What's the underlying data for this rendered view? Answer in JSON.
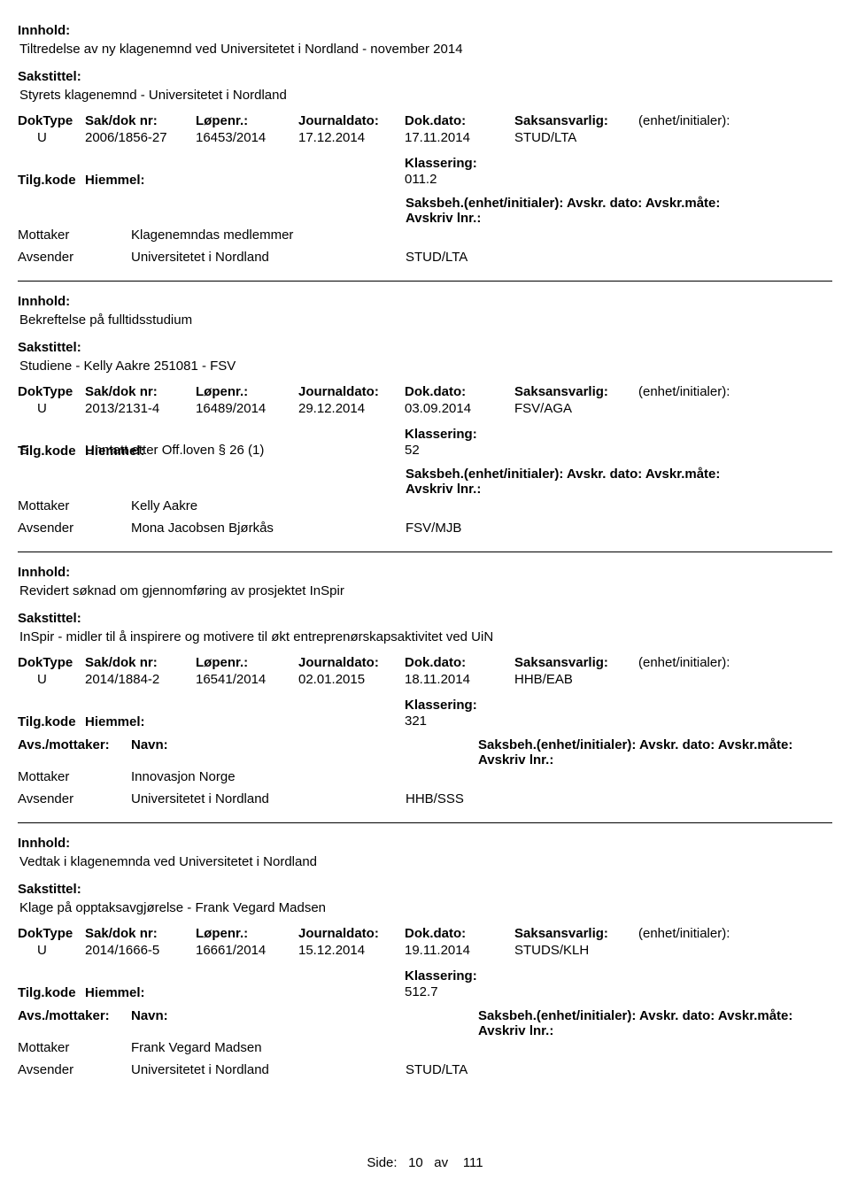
{
  "labels": {
    "innhold": "Innhold:",
    "sakstittel": "Sakstittel:",
    "doktype": "DokType",
    "sakdoknr": "Sak/dok nr:",
    "lopenr": "Løpenr.:",
    "journaldato": "Journaldato:",
    "dokdato": "Dok.dato:",
    "saksansvarlig": "Saksansvarlig:",
    "enhet": "(enhet/initialer):",
    "tilgkode": "Tilg.kode",
    "hjemmel": "Hiemmel:",
    "klassering": "Klassering:",
    "avsmottaker": "Avs./mottaker:",
    "navn": "Navn:",
    "saksbeh": "Saksbeh.(enhet/initialer): Avskr. dato:  Avskr.måte: Avskriv lnr.:",
    "mottaker": "Mottaker",
    "avsender": "Avsender",
    "side": "Side:",
    "av": "av"
  },
  "records": [
    {
      "innhold": "Tiltredelse av ny klagenemnd ved Universitetet i Nordland - november 2014",
      "sakstittel": "Styrets klagenemnd - Universitetet i Nordland",
      "doktype": "U",
      "sakdoknr": "2006/1856-27",
      "lopenr": "16453/2014",
      "journaldato": "17.12.2014",
      "dokdato": "17.11.2014",
      "saksansvarlig": "STUD/LTA",
      "enhet": "",
      "tilgkode": "",
      "hjemmel": "",
      "klassering": "011.2",
      "show_avs_line": false,
      "mottaker_navn": "Klagenemndas medlemmer",
      "mottaker_code": "",
      "avsender_navn": "Universitetet i Nordland",
      "avsender_code": "STUD/LTA"
    },
    {
      "innhold": "Bekreftelse på fulltidsstudium",
      "sakstittel": "Studiene - Kelly Aakre 251081 - FSV",
      "doktype": "U",
      "sakdoknr": "2013/2131-4",
      "lopenr": "16489/2014",
      "journaldato": "29.12.2014",
      "dokdato": "03.09.2014",
      "saksansvarlig": "FSV/AGA",
      "enhet": "",
      "tilgkode": "S",
      "hjemmel": "Unntatt etter Off.loven § 26 (1)",
      "klassering": "52",
      "show_avs_line": false,
      "mottaker_navn": "Kelly Aakre",
      "mottaker_code": "",
      "avsender_navn": "Mona Jacobsen Bjørkås",
      "avsender_code": "FSV/MJB"
    },
    {
      "innhold": "Revidert søknad om gjennomføring av prosjektet InSpir",
      "sakstittel": "InSpir - midler til å inspirere og motivere til økt entreprenørskapsaktivitet ved UiN",
      "doktype": "U",
      "sakdoknr": "2014/1884-2",
      "lopenr": "16541/2014",
      "journaldato": "02.01.2015",
      "dokdato": "18.11.2014",
      "saksansvarlig": "HHB/EAB",
      "enhet": "",
      "tilgkode": "",
      "hjemmel": "",
      "klassering": "321",
      "show_avs_line": true,
      "mottaker_navn": "Innovasjon Norge",
      "mottaker_code": "",
      "avsender_navn": "Universitetet i Nordland",
      "avsender_code": "HHB/SSS"
    },
    {
      "innhold": "Vedtak i klagenemnda ved Universitetet i Nordland",
      "sakstittel": "Klage på opptaksavgjørelse - Frank Vegard Madsen",
      "doktype": "U",
      "sakdoknr": "2014/1666-5",
      "lopenr": "16661/2014",
      "journaldato": "15.12.2014",
      "dokdato": "19.11.2014",
      "saksansvarlig": "STUDS/KLH",
      "enhet": "",
      "tilgkode": "",
      "hjemmel": "",
      "klassering": "512.7",
      "show_avs_line": true,
      "mottaker_navn": "Frank Vegard Madsen",
      "mottaker_code": "",
      "avsender_navn": "Universitetet i Nordland",
      "avsender_code": "STUD/LTA"
    }
  ],
  "page": {
    "current": "10",
    "total": "111"
  }
}
